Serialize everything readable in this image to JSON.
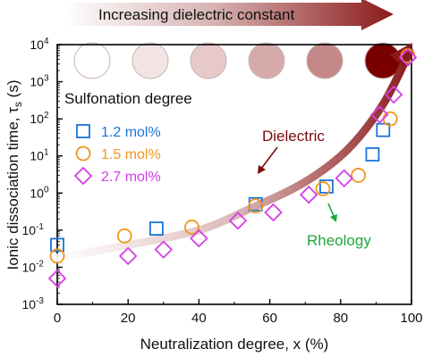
{
  "chart_data": {
    "type": "scatter",
    "title": "Increasing dielectric constant",
    "xlabel": "Neutralization degree, x (%)",
    "ylabel_main": "Ionic dissociation time, τ",
    "ylabel_sub": "s",
    "ylabel_unit": " (s)",
    "xlim": [
      0,
      100
    ],
    "ylim_log10": [
      -3,
      4
    ],
    "x_ticks": [
      0,
      20,
      40,
      60,
      80,
      100
    ],
    "x_tick_labels": [
      "0",
      "20",
      "40",
      "60",
      "80",
      "100"
    ],
    "y_ticks": [
      {
        "base": "10",
        "exp": "-3",
        "log": -3
      },
      {
        "base": "10",
        "exp": "-2",
        "log": -2
      },
      {
        "base": "10",
        "exp": "-1",
        "log": -1
      },
      {
        "base": "10",
        "exp": "0",
        "log": 0
      },
      {
        "base": "10",
        "exp": "1",
        "log": 1
      },
      {
        "base": "10",
        "exp": "2",
        "log": 2
      },
      {
        "base": "10",
        "exp": "3",
        "log": 3
      },
      {
        "base": "10",
        "exp": "4",
        "log": 4
      }
    ],
    "legend_title": "Sulfonation degree",
    "legend_placement": "top-left",
    "series": [
      {
        "name": "1.2 mol%",
        "marker": "square",
        "color": "#1a73d9",
        "points": [
          {
            "x": 0,
            "y": 0.04
          },
          {
            "x": 28,
            "y": 0.11
          },
          {
            "x": 56,
            "y": 0.5
          },
          {
            "x": 76,
            "y": 1.5
          },
          {
            "x": 89,
            "y": 11
          },
          {
            "x": 92,
            "y": 50
          }
        ]
      },
      {
        "name": "1.5 mol%",
        "marker": "circle",
        "color": "#f0961e",
        "points": [
          {
            "x": 0,
            "y": 0.02
          },
          {
            "x": 19,
            "y": 0.07
          },
          {
            "x": 38,
            "y": 0.12
          },
          {
            "x": 56,
            "y": 0.45
          },
          {
            "x": 75,
            "y": 1.3
          },
          {
            "x": 85,
            "y": 3
          },
          {
            "x": 94,
            "y": 100
          },
          {
            "x": 99,
            "y": 5000
          }
        ]
      },
      {
        "name": "2.7 mol%",
        "marker": "diamond",
        "color": "#d43ee6",
        "points": [
          {
            "x": 0,
            "y": 0.005
          },
          {
            "x": 20,
            "y": 0.02
          },
          {
            "x": 30,
            "y": 0.03
          },
          {
            "x": 40,
            "y": 0.06
          },
          {
            "x": 51,
            "y": 0.18
          },
          {
            "x": 61,
            "y": 0.3
          },
          {
            "x": 71,
            "y": 0.9
          },
          {
            "x": 81,
            "y": 2.5
          },
          {
            "x": 91,
            "y": 130
          },
          {
            "x": 95,
            "y": 450
          },
          {
            "x": 99,
            "y": 4500
          }
        ]
      }
    ],
    "circles_scale": {
      "colors": [
        "#ffffff",
        "#f3e4e4",
        "#e7c9c9",
        "#d7aaaa",
        "#c58888",
        "#7a0000"
      ]
    },
    "dielectric_curve": {
      "label": "Dielectric",
      "label_color": "#7a0a0a",
      "points": [
        {
          "x": 0,
          "y": 0.018
        },
        {
          "x": 20,
          "y": 0.04
        },
        {
          "x": 40,
          "y": 0.1
        },
        {
          "x": 55,
          "y": 0.4
        },
        {
          "x": 70,
          "y": 2
        },
        {
          "x": 82,
          "y": 15
        },
        {
          "x": 92,
          "y": 250
        },
        {
          "x": 99.5,
          "y": 6500
        }
      ]
    },
    "annotations": [
      {
        "text": "Rheology",
        "color": "#1fa83a"
      }
    ],
    "colors": {
      "dark_red": "#7a0a0a",
      "rheology_green": "#1fa83a"
    }
  }
}
